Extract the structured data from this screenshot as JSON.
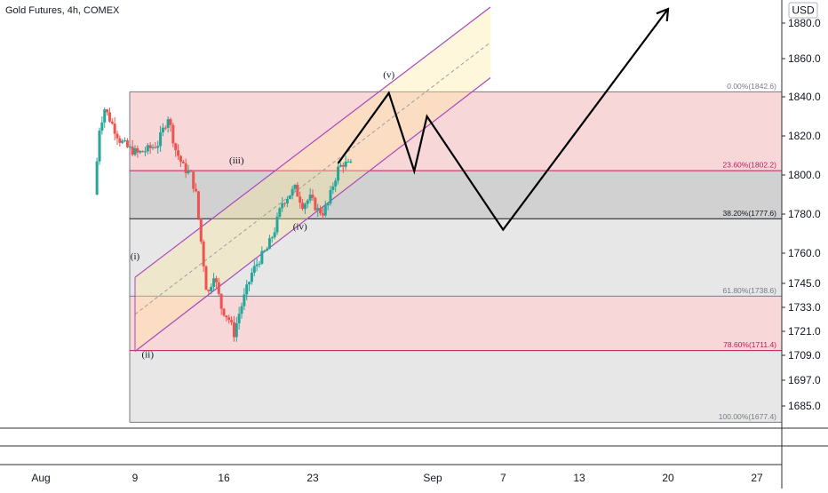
{
  "title": "Gold Futures, 4h, COMEX",
  "currency": "USD",
  "chart_data": {
    "type": "candlestick",
    "symbol": "Gold Futures",
    "interval": "4h",
    "exchange": "COMEX",
    "y_ticks": [
      1685.0,
      1697.0,
      1709.0,
      1721.0,
      1733.0,
      1745.0,
      1760.0,
      1780.0,
      1800.0,
      1820.0,
      1840.0,
      1860.0,
      1880.0
    ],
    "x_ticks": [
      "Aug",
      "9",
      "16",
      "23",
      "Sep",
      "7",
      "13",
      "20",
      "27"
    ],
    "fib_levels": [
      {
        "label": "0.00%(1842.6)",
        "value": 1842.6,
        "color": "#787b86"
      },
      {
        "label": "23.60%(1802.2)",
        "value": 1802.2,
        "color": "#c2185b"
      },
      {
        "label": "38.20%(1777.6)",
        "value": 1777.6,
        "color": "#131722"
      },
      {
        "label": "61.80%(1738.6)",
        "value": 1738.6,
        "color": "#787b86"
      },
      {
        "label": "78.60%(1711.4)",
        "value": 1711.4,
        "color": "#c2185b"
      },
      {
        "label": "100.00%(1677.4)",
        "value": 1677.4,
        "color": "#787b86"
      }
    ],
    "fib_zones": [
      {
        "from": 1842.6,
        "to": 1802.2,
        "color": "#f6d0d0"
      },
      {
        "from": 1802.2,
        "to": 1777.6,
        "color": "#c9c9c9"
      },
      {
        "from": 1777.6,
        "to": 1738.6,
        "color": "#e3e3e3"
      },
      {
        "from": 1738.6,
        "to": 1711.4,
        "color": "#f6d0d0"
      },
      {
        "from": 1711.4,
        "to": 1677.4,
        "color": "#e3e3e3"
      }
    ],
    "wave_labels": [
      {
        "text": "(i)",
        "x": "Aug 9",
        "y": 1757
      },
      {
        "text": "(ii)",
        "x": "Aug 10",
        "y": 1708
      },
      {
        "text": "(iii)",
        "x": "Aug 17",
        "y": 1806
      },
      {
        "text": "(iv)",
        "x": "Aug 22",
        "y": 1772
      },
      {
        "text": "(v)",
        "x": "Aug 29",
        "y": 1850
      }
    ],
    "projection_path": [
      {
        "x": "Aug 25",
        "y": 1806
      },
      {
        "x": "Aug 29",
        "y": 1842
      },
      {
        "x": "Aug 31",
        "y": 1802
      },
      {
        "x": "Sep 1",
        "y": 1830
      },
      {
        "x": "Sep 7",
        "y": 1772
      },
      {
        "x": "Sep 20",
        "y": 1888
      }
    ],
    "channel": {
      "start": "Aug 9",
      "end": "Sep 6",
      "upper_start": 1748,
      "upper_end": 1889,
      "lower_start": 1711,
      "lower_end": 1850,
      "color": "#ab47bc"
    },
    "last_close": 1806
  }
}
